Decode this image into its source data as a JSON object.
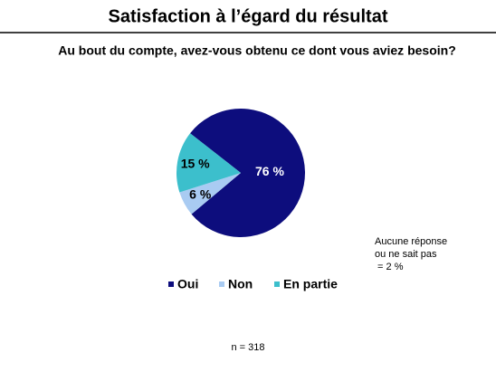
{
  "chart_data": {
    "type": "pie",
    "title": "Satisfaction à l’égard du résultat",
    "subtitle": "Au bout du compte, avez-vous obtenu ce dont vous aviez besoin?",
    "categories": [
      "Oui",
      "Non",
      "En partie"
    ],
    "values": [
      76,
      6,
      15
    ],
    "value_labels": [
      "76 %",
      "6 %",
      "15 %"
    ],
    "colors": [
      "#0d0d7d",
      "#a9cbf2",
      "#3cbfcc"
    ],
    "annotation": [
      "Aucune réponse",
      "ou ne sait pas",
      " = 2 %"
    ],
    "note": "n = 318",
    "legend": "bottom"
  }
}
